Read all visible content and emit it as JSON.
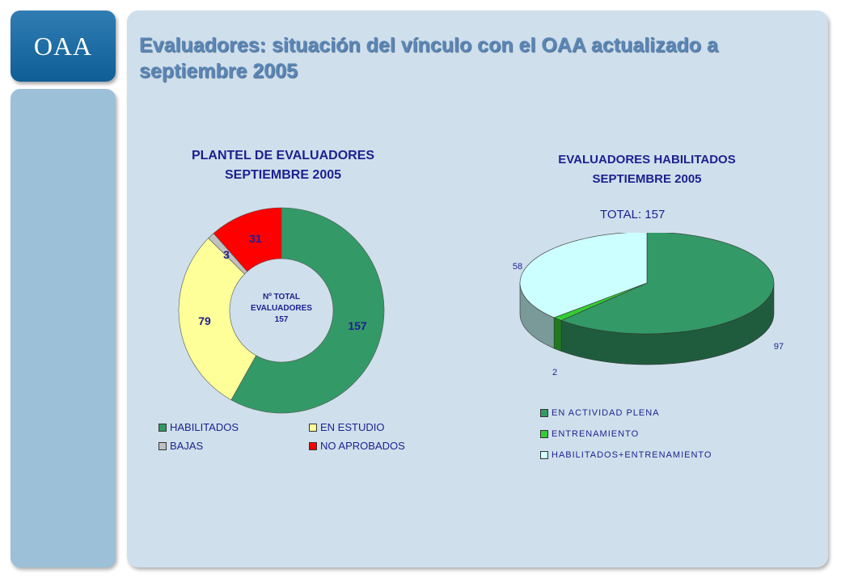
{
  "logo": {
    "text": "OAA"
  },
  "title": "Evaluadores: situación del vínculo con el OAA actualizado a septiembre 2005",
  "colors": {
    "green": "#339966",
    "yellow": "#ffff99",
    "gray": "#c0c0c0",
    "red": "#ff0000",
    "bright_green": "#33cc33",
    "light_cyan": "#ccffff"
  },
  "chart_data": [
    {
      "type": "pie",
      "variant": "donut",
      "title_line1": "PLANTEL DE EVALUADORES",
      "title_line2": "SEPTIEMBRE 2005",
      "center_line1": "Nº TOTAL",
      "center_line2": "EVALUADORES",
      "center_line3": "157",
      "categories": [
        "HABILITADOS",
        "EN ESTUDIO",
        "BAJAS",
        "NO APROBADOS"
      ],
      "values": [
        157,
        79,
        3,
        31
      ],
      "colors": [
        "#339966",
        "#ffff99",
        "#c0c0c0",
        "#ff0000"
      ],
      "labels": [
        "157",
        "79",
        "3",
        "31"
      ],
      "legend_position": "bottom"
    },
    {
      "type": "pie",
      "variant": "3d",
      "title_line1": "EVALUADORES HABILITADOS",
      "title_line2": "SEPTIEMBRE 2005",
      "total_label": "TOTAL: 157",
      "categories": [
        "EN ACTIVIDAD PLENA",
        "ENTRENAMIENTO",
        "HABILITADOS+ENTRENAMIENTO"
      ],
      "values": [
        97,
        2,
        58
      ],
      "colors": [
        "#339966",
        "#33cc33",
        "#ccffff"
      ],
      "labels": [
        "97",
        "2",
        "58"
      ],
      "legend_position": "bottom"
    }
  ]
}
